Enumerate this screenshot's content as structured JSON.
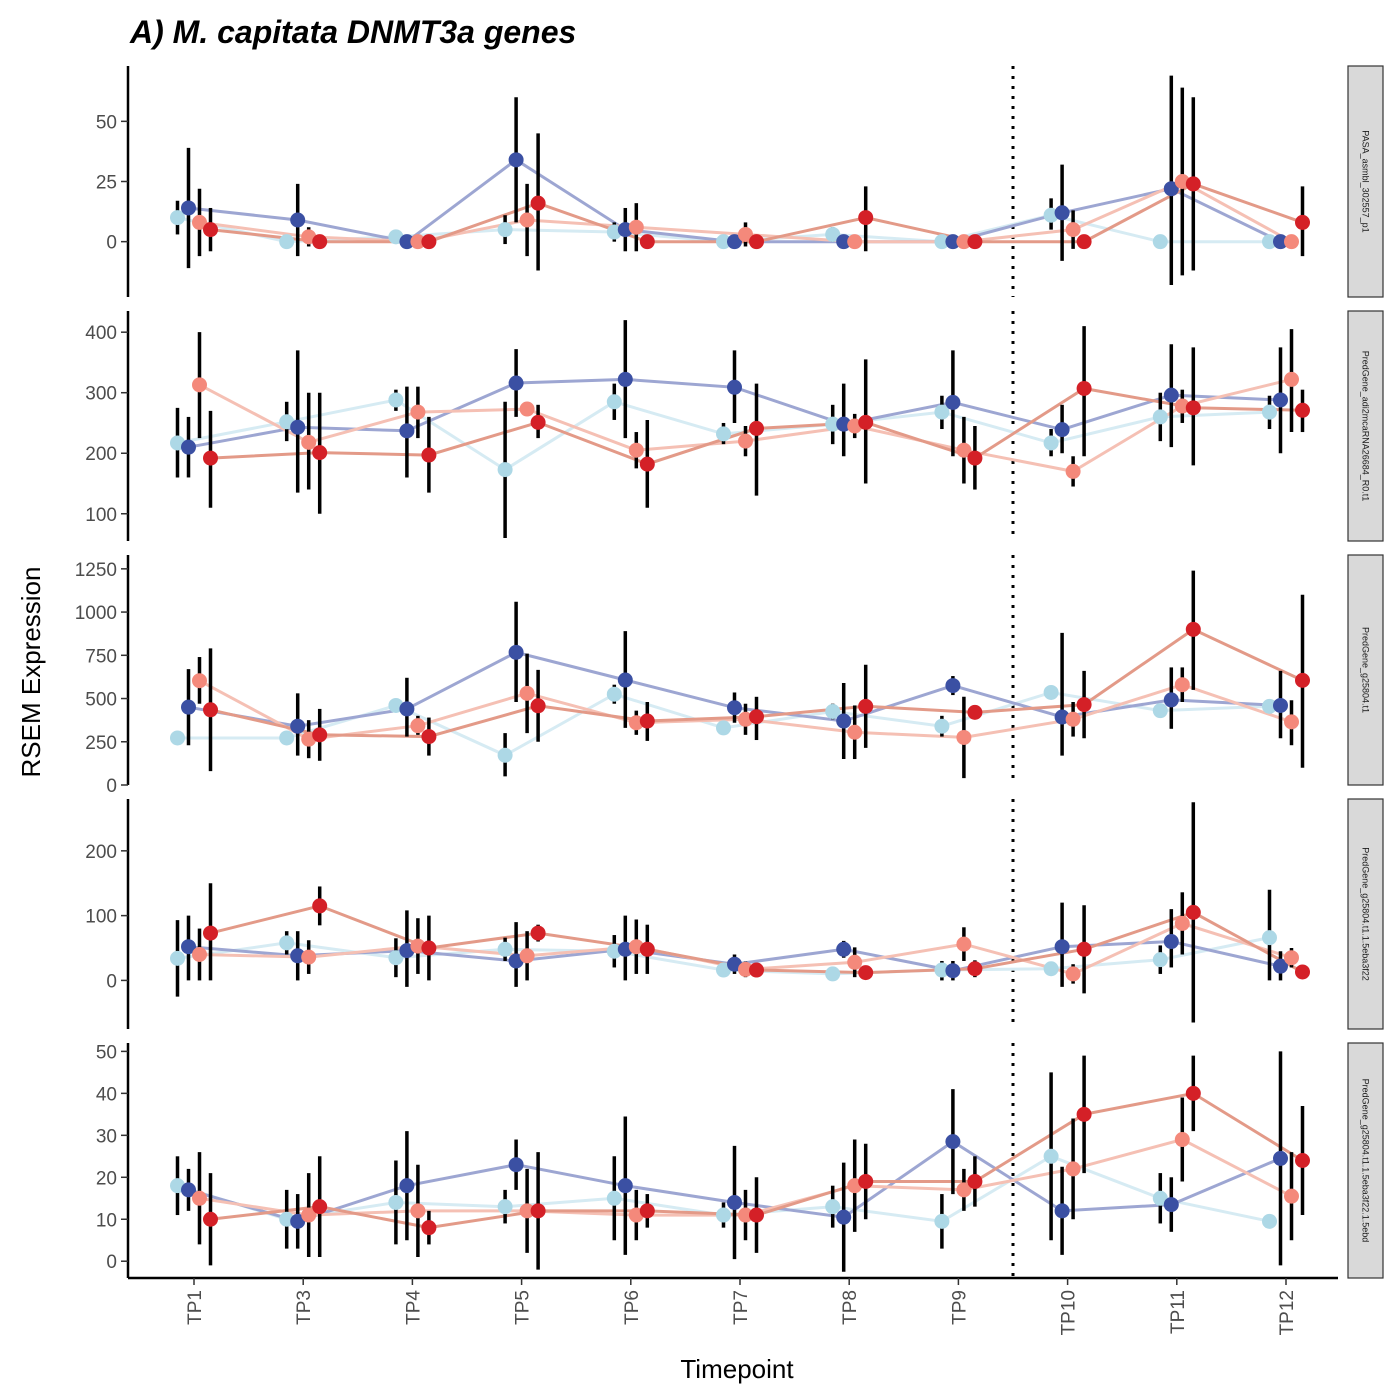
{
  "figure": {
    "title": "A) M. capitata DNMT3a genes",
    "xlabel": "Timepoint",
    "ylabel": "RSEM Expression"
  },
  "colors": {
    "treatments": [
      "#add8e6",
      "#3b50a3",
      "#f4897b",
      "#d42027"
    ],
    "lines": [
      "#d6ebf3",
      "#9da6d2",
      "#f5c0b4",
      "#e39a88"
    ],
    "errorbar": "#000000",
    "strip_bg": "#d9d9d9",
    "vline": "#000000"
  },
  "chart_data": {
    "type": "line",
    "categories": [
      "TP1",
      "TP3",
      "TP4",
      "TP5",
      "TP6",
      "TP7",
      "TP8",
      "TP9",
      "TP10",
      "TP11",
      "TP12"
    ],
    "vline_between": [
      "TP9",
      "TP10"
    ],
    "panels": [
      {
        "strip": "PASA_asmbl_302557_p1",
        "ylim": [
          -23,
          73
        ],
        "yticks": [
          0,
          25,
          50
        ],
        "series": [
          {
            "mean": [
              10,
              0,
              2,
              5,
              4,
              0,
              3,
              0,
              11,
              0,
              0
            ],
            "lo": [
              3,
              0,
              0,
              -1,
              0,
              0,
              0,
              0,
              5,
              0,
              0
            ],
            "hi": [
              17,
              0,
              4,
              11,
              8,
              0,
              6,
              0,
              18,
              0,
              0
            ]
          },
          {
            "mean": [
              14,
              9,
              0,
              34,
              5,
              0,
              0,
              0,
              12,
              22,
              0
            ],
            "lo": [
              -11,
              -6,
              0,
              8,
              -4,
              -1,
              -1,
              -1,
              -8,
              -18,
              0
            ],
            "hi": [
              39,
              24,
              0,
              60,
              14,
              1,
              1,
              1,
              32,
              69,
              0
            ]
          },
          {
            "mean": [
              8,
              2,
              0,
              9,
              6,
              3,
              0,
              0,
              5,
              25,
              0
            ],
            "lo": [
              -6,
              -2,
              0,
              -6,
              -4,
              -2,
              0,
              0,
              -3,
              -14,
              0
            ],
            "hi": [
              22,
              6,
              0,
              24,
              16,
              8,
              0,
              0,
              13,
              64,
              0
            ]
          },
          {
            "mean": [
              5,
              0,
              0,
              16,
              0,
              0,
              10,
              0,
              0,
              24,
              8
            ],
            "lo": [
              -4,
              0,
              0,
              -12,
              0,
              0,
              -4,
              0,
              0,
              -12,
              -6
            ],
            "hi": [
              14,
              0,
              0,
              45,
              0,
              0,
              23,
              0,
              0,
              60,
              23
            ]
          }
        ]
      },
      {
        "strip": "PredGene_adi2mcaRNA26684_R0.t1",
        "ylim": [
          55,
          435
        ],
        "yticks": [
          100,
          200,
          300,
          400
        ],
        "series": [
          {
            "mean": [
              217,
              252,
              288,
              173,
              285,
              232,
              248,
              268,
              217,
              260,
              268
            ],
            "lo": [
              160,
              220,
              270,
              60,
              255,
              215,
              215,
              240,
              195,
              220,
              240
            ],
            "hi": [
              275,
              285,
              305,
              285,
              315,
              250,
              280,
              295,
              240,
              300,
              295
            ]
          },
          {
            "mean": [
              210,
              243,
              237,
              316,
              322,
              309,
              248,
              284,
              239,
              296,
              288
            ],
            "lo": [
              160,
              135,
              160,
              260,
              225,
              250,
              195,
              195,
              200,
              210,
              200
            ],
            "hi": [
              260,
              370,
              310,
              372,
              420,
              370,
              315,
              370,
              280,
              380,
              375
            ]
          },
          {
            "mean": [
              313,
              218,
              268,
              273,
              205,
              220,
              245,
              205,
              170,
              278,
              322
            ],
            "lo": [
              225,
              140,
              225,
              265,
              175,
              195,
              225,
              150,
              145,
              250,
              235
            ],
            "hi": [
              400,
              300,
              310,
              282,
              235,
              245,
              265,
              260,
              195,
              305,
              405
            ]
          },
          {
            "mean": [
              192,
              201,
              197,
              251,
              182,
              241,
              251,
              192,
              307,
              275,
              271
            ],
            "lo": [
              110,
              100,
              135,
              225,
              110,
              130,
              150,
              140,
              195,
              180,
              235
            ],
            "hi": [
              270,
              300,
              260,
              280,
              255,
              315,
              355,
              245,
              410,
              375,
              305
            ]
          }
        ]
      },
      {
        "strip": "PredGene_g25804.t1",
        "ylim": [
          0,
          1330
        ],
        "yticks": [
          0,
          250,
          500,
          750,
          1000,
          1250
        ],
        "series": [
          {
            "mean": [
              272,
              272,
              460,
              172,
              525,
              330,
              425,
              340,
              535,
              430,
              455
            ],
            "lo": [
              272,
              272,
              420,
              50,
              470,
              300,
              380,
              280,
              500,
              400,
              420
            ],
            "hi": [
              272,
              272,
              500,
              300,
              580,
              360,
              470,
              400,
              570,
              460,
              490
            ]
          },
          {
            "mean": [
              450,
              340,
              440,
              767,
              607,
              447,
              370,
              575,
              393,
              492,
              460
            ],
            "lo": [
              230,
              170,
              280,
              480,
              330,
              360,
              150,
              520,
              170,
              325,
              270
            ],
            "hi": [
              670,
              530,
              620,
              1060,
              890,
              535,
              590,
              630,
              880,
              680,
              660
            ]
          },
          {
            "mean": [
              603,
              265,
              343,
              530,
              360,
              380,
              305,
              275,
              380,
              580,
              365
            ],
            "lo": [
              470,
              155,
              290,
              300,
              290,
              290,
              150,
              40,
              280,
              480,
              230
            ],
            "hi": [
              740,
              375,
              400,
              760,
              430,
              470,
              460,
              510,
              480,
              680,
              490
            ]
          },
          {
            "mean": [
              435,
              290,
              280,
              458,
              370,
              395,
              455,
              420,
              465,
              900,
              605
            ],
            "lo": [
              80,
              140,
              170,
              250,
              255,
              260,
              215,
              380,
              270,
              550,
              100
            ],
            "hi": [
              790,
              440,
              390,
              666,
              480,
              510,
              695,
              460,
              660,
              1240,
              1100
            ]
          }
        ]
      },
      {
        "strip": "PredGene_g25804.t1.1.5eba3f22",
        "ylim": [
          -75,
          280
        ],
        "yticks": [
          0,
          100,
          200
        ],
        "series": [
          {
            "mean": [
              34,
              58,
              35,
              48,
              45,
              16,
              10,
              16,
              18,
              32,
              66
            ],
            "lo": [
              -25,
              40,
              5,
              30,
              20,
              10,
              5,
              0,
              10,
              10,
              0
            ],
            "hi": [
              93,
              76,
              65,
              66,
              70,
              22,
              15,
              30,
              26,
              54,
              140
            ]
          },
          {
            "mean": [
              52,
              38,
              46,
              30,
              48,
              25,
              48,
              15,
              52,
              60,
              22
            ],
            "lo": [
              0,
              0,
              -10,
              -10,
              0,
              10,
              35,
              0,
              -10,
              20,
              0
            ],
            "hi": [
              100,
              76,
              108,
              90,
              100,
              40,
              61,
              30,
              120,
              110,
              45
            ]
          },
          {
            "mean": [
              40,
              36,
              53,
              38,
              52,
              17,
              28,
              56,
              10,
              88,
              35
            ],
            "lo": [
              0,
              10,
              10,
              0,
              10,
              5,
              5,
              30,
              -5,
              40,
              20
            ],
            "hi": [
              80,
              62,
              96,
              76,
              94,
              29,
              51,
              82,
              25,
              136,
              50
            ]
          },
          {
            "mean": [
              73,
              115,
              50,
              73,
              48,
              16,
              12,
              18,
              48,
              105,
              13
            ],
            "lo": [
              0,
              85,
              0,
              60,
              10,
              5,
              5,
              5,
              -20,
              -65,
              5
            ],
            "hi": [
              150,
              145,
              100,
              86,
              86,
              27,
              19,
              31,
              116,
              275,
              21
            ]
          }
        ]
      },
      {
        "strip": "PredGene_g25804.t1.1.5eba3f22.1.5ebd",
        "ylim": [
          -4,
          52
        ],
        "yticks": [
          0,
          10,
          20,
          30,
          40,
          50
        ],
        "series": [
          {
            "mean": [
              18,
              10,
              14,
              13,
              15,
              11,
              13,
              9.5,
              25,
              15,
              9.5
            ],
            "lo": [
              11,
              3,
              4,
              9,
              5,
              8,
              8,
              3,
              5,
              9,
              9.5
            ],
            "hi": [
              25,
              17,
              24,
              17,
              25,
              14,
              18,
              16,
              45,
              21,
              9.5
            ]
          },
          {
            "mean": [
              17,
              9.5,
              18,
              23,
              18,
              14,
              10.5,
              28.5,
              12,
              13.5,
              24.5
            ],
            "lo": [
              12,
              3,
              5,
              17,
              1.5,
              0.5,
              -2.5,
              16,
              1.5,
              7,
              -1
            ],
            "hi": [
              22,
              16,
              31,
              29,
              34.5,
              27.5,
              23.5,
              41,
              22.5,
              20,
              50
            ]
          },
          {
            "mean": [
              15,
              11,
              12,
              12,
              11,
              11,
              18,
              17,
              22,
              29,
              15.5
            ],
            "lo": [
              4,
              1,
              1,
              2,
              5,
              5,
              7,
              12,
              10,
              19,
              5
            ],
            "hi": [
              26,
              21,
              23,
              22,
              17,
              17,
              29,
              22,
              34,
              39,
              26
            ]
          },
          {
            "mean": [
              10,
              13,
              8,
              12,
              12,
              11,
              19,
              19,
              35,
              40,
              24
            ],
            "lo": [
              -1,
              1,
              4,
              -2,
              8,
              2,
              10,
              13,
              21,
              31,
              11
            ],
            "hi": [
              21,
              25,
              12,
              26,
              16,
              20,
              28,
              25,
              49,
              49,
              37
            ]
          }
        ]
      }
    ]
  }
}
